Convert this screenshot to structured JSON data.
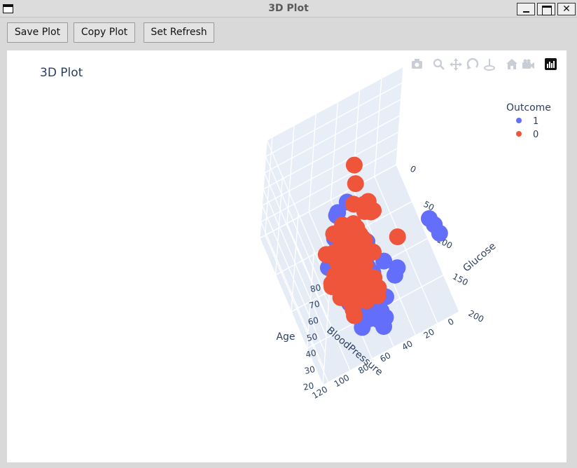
{
  "window": {
    "title": "3D Plot"
  },
  "toolbar": {
    "save_label": "Save Plot",
    "copy_label": "Copy Plot",
    "refresh_label": "Set Refresh"
  },
  "modebar": [
    "camera-icon",
    "zoom-icon",
    "pan-icon",
    "orbit-rotation-icon",
    "turntable-rotation-icon",
    "reset-camera-icon",
    "camera-view-icon",
    "plotly-logo-icon"
  ],
  "colors": {
    "outcome_1": "#636efa",
    "outcome_0": "#ef553b",
    "axis_text": "#2a3f5f",
    "pane": "#e5ecf6"
  },
  "chart_data": {
    "type": "scatter",
    "subtype": "scatter3d",
    "title": "3D Plot",
    "axes": {
      "x": {
        "label": "Glucose",
        "range": [
          0,
          200
        ],
        "ticks": [
          "0",
          "50",
          "100",
          "150",
          "200"
        ]
      },
      "y": {
        "label": "BloodPressure",
        "range": [
          0,
          125
        ],
        "ticks": [
          "0",
          "20",
          "40",
          "60",
          "80",
          "100",
          "120"
        ]
      },
      "z": {
        "label": "Age",
        "range": [
          20,
          80
        ],
        "ticks": [
          "20",
          "30",
          "40",
          "50",
          "60",
          "70",
          "80"
        ]
      }
    },
    "legend": {
      "title": "Outcome",
      "placement": "top-right",
      "entries": [
        "1",
        "0"
      ]
    },
    "series": [
      {
        "name": "1",
        "color": "#636efa",
        "points": [
          [
            148,
            72,
            50
          ],
          [
            183,
            64,
            32
          ],
          [
            137,
            40,
            33
          ],
          [
            78,
            50,
            26
          ],
          [
            197,
            70,
            53
          ],
          [
            125,
            96,
            54
          ],
          [
            168,
            74,
            34
          ],
          [
            189,
            60,
            59
          ],
          [
            166,
            72,
            51
          ],
          [
            100,
            0,
            32
          ],
          [
            118,
            84,
            31
          ],
          [
            107,
            74,
            31
          ],
          [
            115,
            0,
            35
          ],
          [
            196,
            90,
            41
          ],
          [
            119,
            80,
            29
          ],
          [
            143,
            94,
            51
          ],
          [
            109,
            92,
            57
          ],
          [
            158,
            76,
            28
          ],
          [
            88,
            58,
            22
          ],
          [
            170,
            64,
            30
          ],
          [
            126,
            88,
            42
          ],
          [
            102,
            76,
            46
          ],
          [
            90,
            85,
            60
          ],
          [
            111,
            72,
            40
          ],
          [
            180,
            64,
            25
          ],
          [
            155,
            62,
            26
          ],
          [
            146,
            82,
            44
          ],
          [
            124,
            70,
            30
          ],
          [
            162,
            84,
            54
          ],
          [
            136,
            74,
            51
          ],
          [
            140,
            65,
            38
          ],
          [
            180,
            78,
            63
          ],
          [
            71,
            70,
            33
          ],
          [
            128,
            72,
            48
          ],
          [
            164,
            82,
            53
          ],
          [
            154,
            62,
            27
          ],
          [
            131,
            0,
            37
          ],
          [
            104,
            72,
            35
          ],
          [
            173,
            84,
            48
          ],
          [
            187,
            68,
            36
          ],
          [
            181,
            84,
            60
          ],
          [
            199,
            76,
            42
          ],
          [
            95,
            80,
            23
          ],
          [
            120,
            80,
            34
          ],
          [
            152,
            90,
            39
          ],
          [
            117,
            60,
            40
          ],
          [
            129,
            80,
            52
          ],
          [
            163,
            72,
            25
          ],
          [
            139,
            54,
            43
          ],
          [
            101,
            68,
            25
          ],
          [
            94,
            76,
            28
          ],
          [
            134,
            82,
            25
          ],
          [
            85,
            74,
            62
          ],
          [
            173,
            74,
            45
          ],
          [
            190,
            92,
            66
          ],
          [
            100,
            66,
            45
          ],
          [
            145,
            82,
            50
          ],
          [
            115,
            98,
            44
          ],
          [
            158,
            78,
            58
          ],
          [
            146,
            85,
            62
          ],
          [
            84,
            82,
            58
          ],
          [
            129,
            88,
            68
          ],
          [
            195,
            70,
            40
          ],
          [
            112,
            66,
            49
          ]
        ]
      },
      {
        "name": "0",
        "color": "#ef553b",
        "points": [
          [
            85,
            66,
            31
          ],
          [
            89,
            66,
            21
          ],
          [
            116,
            74,
            30
          ],
          [
            110,
            92,
            30
          ],
          [
            139,
            80,
            57
          ],
          [
            103,
            30,
            33
          ],
          [
            126,
            88,
            27
          ],
          [
            99,
            84,
            50
          ],
          [
            97,
            66,
            22
          ],
          [
            145,
            82,
            26
          ],
          [
            117,
            92,
            38
          ],
          [
            109,
            75,
            60
          ],
          [
            100,
            70,
            32
          ],
          [
            92,
            62,
            41
          ],
          [
            122,
            78,
            31
          ],
          [
            88,
            74,
            23
          ],
          [
            103,
            80,
            22
          ],
          [
            111,
            58,
            21
          ],
          [
            96,
            74,
            42
          ],
          [
            103,
            72,
            20
          ],
          [
            112,
            74,
            44
          ],
          [
            146,
            60,
            27
          ],
          [
            105,
            72,
            29
          ],
          [
            126,
            68,
            23
          ],
          [
            114,
            56,
            38
          ],
          [
            118,
            76,
            44
          ],
          [
            92,
            62,
            28
          ],
          [
            122,
            70,
            40
          ],
          [
            93,
            70,
            44
          ],
          [
            112,
            78,
            60
          ],
          [
            97,
            60,
            27
          ],
          [
            111,
            62,
            31
          ],
          [
            98,
            58,
            22
          ],
          [
            107,
            78,
            39
          ],
          [
            113,
            66,
            33
          ],
          [
            99,
            70,
            43
          ],
          [
            80,
            72,
            31
          ],
          [
            81,
            78,
            25
          ],
          [
            97,
            64,
            29
          ],
          [
            105,
            80,
            26
          ],
          [
            84,
            68,
            21
          ],
          [
            130,
            70,
            33
          ],
          [
            129,
            84,
            32
          ],
          [
            95,
            72,
            22
          ],
          [
            79,
            80,
            27
          ],
          [
            123,
            74,
            39
          ],
          [
            68,
            66,
            23
          ],
          [
            102,
            60,
            65
          ],
          [
            120,
            70,
            75
          ],
          [
            74,
            68,
            23
          ],
          [
            141,
            58,
            29
          ],
          [
            100,
            88,
            22
          ],
          [
            106,
            64,
            62
          ],
          [
            61,
            82,
            22
          ],
          [
            110,
            68,
            24
          ],
          [
            133,
            80,
            70
          ],
          [
            150,
            66,
            42
          ],
          [
            88,
            58,
            22
          ],
          [
            120,
            78,
            22
          ],
          [
            123,
            72,
            33
          ],
          [
            147,
            76,
            39
          ],
          [
            91,
            80,
            21
          ],
          [
            138,
            82,
            27
          ],
          [
            102,
            74,
            22
          ],
          [
            107,
            60,
            24
          ],
          [
            93,
            64,
            23
          ],
          [
            105,
            90,
            46
          ],
          [
            128,
            68,
            22
          ],
          [
            57,
            60,
            67
          ],
          [
            116,
            70,
            27
          ],
          [
            87,
            68,
            72
          ],
          [
            108,
            62,
            25
          ],
          [
            134,
            72,
            60
          ],
          [
            117,
            62,
            66
          ],
          [
            119,
            86,
            30
          ],
          [
            116,
            72,
            45
          ],
          [
            100,
            90,
            55
          ],
          [
            96,
            56,
            30
          ],
          [
            112,
            84,
            28
          ],
          [
            99,
            70,
            36
          ],
          [
            95,
            66,
            24
          ],
          [
            125,
            76,
            34
          ],
          [
            84,
            72,
            28
          ],
          [
            91,
            70,
            62
          ],
          [
            129,
            64,
            73
          ],
          [
            106,
            72,
            21
          ],
          [
            111,
            86,
            64
          ],
          [
            157,
            74,
            34
          ],
          [
            123,
            62,
            22
          ],
          [
            86,
            66,
            25
          ],
          [
            99,
            82,
            55
          ],
          [
            161,
            86,
            31
          ],
          [
            93,
            56,
            26
          ],
          [
            115,
            72,
            44
          ],
          [
            130,
            78,
            38
          ],
          [
            94,
            65,
            36
          ]
        ]
      }
    ]
  }
}
